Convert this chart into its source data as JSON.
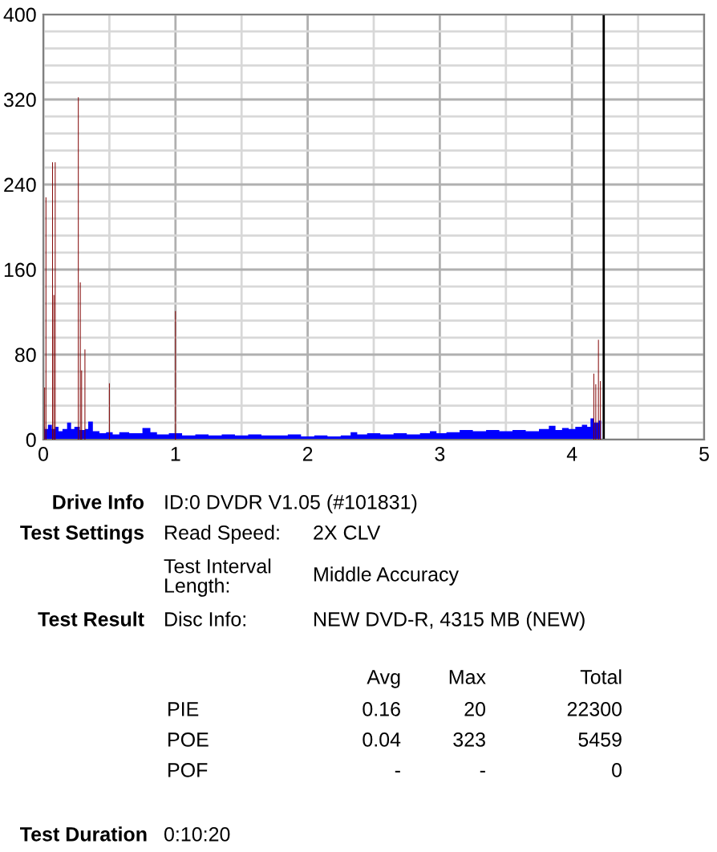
{
  "chart_data": {
    "type": "bar",
    "xlim": [
      0,
      5
    ],
    "xticks": [
      0,
      {
        "value": 0.5,
        "label": null
      },
      1,
      {
        "value": 1.5,
        "label": null
      },
      2,
      {
        "value": 2.5,
        "label": null
      },
      3,
      {
        "value": 3.5,
        "label": null
      },
      4,
      {
        "value": 4.5,
        "label": null
      },
      5
    ],
    "ylim": [
      0,
      400
    ],
    "yticks": [
      0,
      {
        "value": 16,
        "label": null
      },
      {
        "value": 32,
        "label": null
      },
      {
        "value": 48,
        "label": null
      },
      {
        "value": 64,
        "label": null
      },
      80,
      {
        "value": 96,
        "label": null
      },
      {
        "value": 112,
        "label": null
      },
      {
        "value": 128,
        "label": null
      },
      {
        "value": 144,
        "label": null
      },
      160,
      {
        "value": 176,
        "label": null
      },
      {
        "value": 192,
        "label": null
      },
      {
        "value": 208,
        "label": null
      },
      {
        "value": 224,
        "label": null
      },
      240,
      {
        "value": 256,
        "label": null
      },
      {
        "value": 272,
        "label": null
      },
      {
        "value": 288,
        "label": null
      },
      {
        "value": 304,
        "label": null
      },
      320,
      {
        "value": 336,
        "label": null
      },
      {
        "value": 352,
        "label": null
      },
      {
        "value": 368,
        "label": null
      },
      {
        "value": 384,
        "label": null
      },
      400
    ],
    "grid": true,
    "series": [
      {
        "type": "area",
        "color": "#0000ff",
        "x": [
          0,
          0.02,
          0.05,
          0.08,
          0.1,
          0.13,
          0.16,
          0.2,
          0.22,
          0.25,
          0.3,
          0.33,
          0.35,
          0.4,
          0.45,
          0.5,
          0.55,
          0.6,
          0.7,
          0.8,
          0.82,
          0.9,
          1.0,
          1.1,
          1.2,
          1.3,
          1.4,
          1.5,
          1.6,
          1.7,
          1.8,
          1.9,
          2.0,
          2.1,
          2.2,
          2.3,
          2.35,
          2.4,
          2.5,
          2.6,
          2.7,
          2.8,
          2.9,
          2.95,
          3.0,
          3.1,
          3.2,
          3.3,
          3.4,
          3.5,
          3.6,
          3.7,
          3.8,
          3.85,
          3.9,
          3.95,
          4.0,
          4.05,
          4.1,
          4.13,
          4.15,
          4.18,
          4.22
        ],
        "values": [
          12,
          10,
          14,
          10,
          12,
          8,
          10,
          16,
          10,
          12,
          9,
          10,
          17,
          8,
          6,
          7,
          5,
          7,
          6,
          11,
          7,
          5,
          6,
          4,
          5,
          4,
          5,
          4,
          5,
          4,
          4,
          5,
          3,
          4,
          3,
          4,
          7,
          5,
          6,
          5,
          6,
          5,
          6,
          8,
          6,
          7,
          9,
          8,
          9,
          8,
          9,
          8,
          10,
          13,
          9,
          11,
          10,
          12,
          14,
          12,
          20,
          16,
          18
        ]
      },
      {
        "color": "#800000",
        "x": [
          0.01,
          0.02,
          0.07,
          0.08,
          0.09,
          0.265,
          0.28,
          0.29,
          0.315,
          0.5,
          1.0,
          4.165,
          4.18,
          4.2,
          4.215
        ],
        "values": [
          49,
          228,
          261,
          136,
          261,
          322,
          148,
          65,
          85,
          53,
          121,
          62,
          52,
          94,
          55
        ]
      }
    ],
    "ref_lines": [
      {
        "axis": "x",
        "value": 4.24,
        "color": "#000000"
      }
    ],
    "annotations": [
      "Drive Info",
      "ID:0 DVDR V1.05 (#101831)",
      "Test Settings",
      "Read Speed:",
      "2X CLV",
      "Test Interval\nLength:",
      "Middle Accuracy",
      "Test Result",
      "Disc Info:",
      "NEW DVD-R, 4315 MB (NEW)",
      "Avg",
      "Max",
      "Total",
      "PIE",
      "0.16",
      "20",
      "22300",
      "POE",
      "0.04",
      "323",
      "5459",
      "POF",
      "-",
      "-",
      "0",
      "Test Duration",
      "0:10:20"
    ]
  }
}
